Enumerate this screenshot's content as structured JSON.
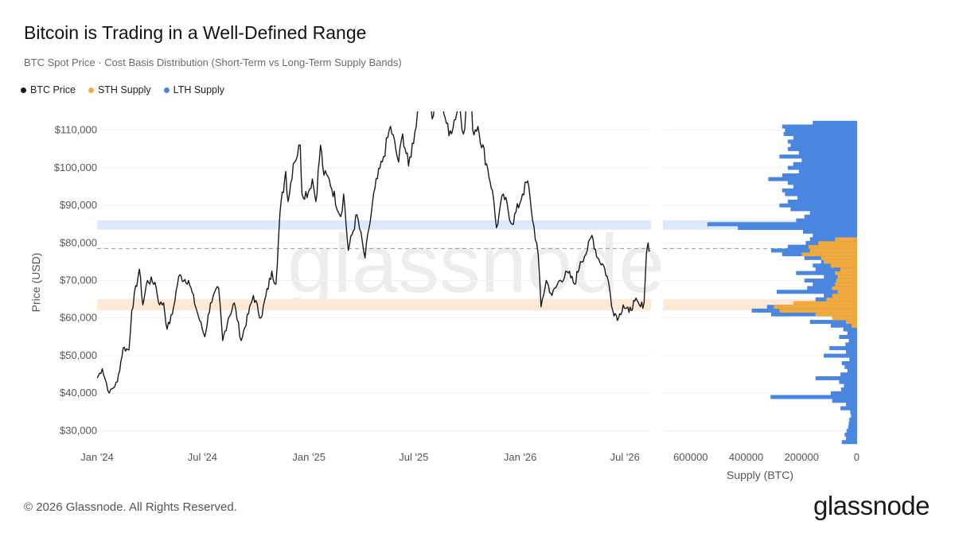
{
  "header": {
    "title": "Bitcoin is Trading in a Well-Defined Range",
    "subtitle": "BTC Spot Price · Cost Basis Distribution (Short-Term vs Long-Term Supply Bands)"
  },
  "legend": [
    {
      "label": "BTC Price",
      "color": "#1a1a1a"
    },
    {
      "label": "STH Supply",
      "color": "#f2a93b"
    },
    {
      "label": "LTH Supply",
      "color": "#4a86e0"
    }
  ],
  "footer": {
    "copyright": "© 2026 Glassnode. All Rights Reserved.",
    "brand": "glassnode",
    "watermark": "glassnode"
  },
  "chart_data": [
    {
      "type": "line",
      "ylabel": "Price (USD)",
      "ylim": [
        25000,
        115000
      ],
      "x_range": [
        "2024-01-01",
        "2026-08-15"
      ],
      "x_ticks": [
        "Jan '24",
        "Jul '24",
        "Jan '25",
        "Jul '25",
        "Jan '26",
        "Jul '26"
      ],
      "y_ticks": [
        "$30,000",
        "$40,000",
        "$50,000",
        "$60,000",
        "$70,000",
        "$80,000",
        "$90,000",
        "$100,000",
        "$110,000"
      ],
      "y_tick_values": [
        30000,
        40000,
        50000,
        60000,
        70000,
        80000,
        90000,
        100000,
        110000
      ],
      "bands": [
        {
          "name": "LTH band",
          "from": 83500,
          "to": 86000,
          "color": "#dce9fb"
        },
        {
          "name": "STH band",
          "from": 62000,
          "to": 65000,
          "color": "#fde9d6"
        }
      ],
      "reference_line": 78500,
      "series": [
        {
          "name": "BTC Price",
          "color": "#1a1a1a",
          "points": [
            [
              "2024-01-01",
              44000
            ],
            [
              "2024-01-10",
              46500
            ],
            [
              "2024-01-22",
              40000
            ],
            [
              "2024-02-05",
              43000
            ],
            [
              "2024-02-15",
              52000
            ],
            [
              "2024-02-25",
              51500
            ],
            [
              "2024-03-01",
              62000
            ],
            [
              "2024-03-14",
              73000
            ],
            [
              "2024-03-20",
              63500
            ],
            [
              "2024-03-28",
              70000
            ],
            [
              "2024-04-10",
              69500
            ],
            [
              "2024-04-18",
              63500
            ],
            [
              "2024-04-25",
              64000
            ],
            [
              "2024-05-01",
              57000
            ],
            [
              "2024-05-10",
              61000
            ],
            [
              "2024-05-21",
              71000
            ],
            [
              "2024-06-07",
              70000
            ],
            [
              "2024-06-24",
              60500
            ],
            [
              "2024-07-05",
              55000
            ],
            [
              "2024-07-15",
              64000
            ],
            [
              "2024-07-29",
              68000
            ],
            [
              "2024-08-05",
              54000
            ],
            [
              "2024-08-15",
              60000
            ],
            [
              "2024-08-25",
              64000
            ],
            [
              "2024-09-06",
              54000
            ],
            [
              "2024-09-27",
              66000
            ],
            [
              "2024-10-10",
              60000
            ],
            [
              "2024-10-29",
              72500
            ],
            [
              "2024-11-05",
              69000
            ],
            [
              "2024-11-12",
              88000
            ],
            [
              "2024-11-22",
              99000
            ],
            [
              "2024-11-26",
              91000
            ],
            [
              "2024-12-05",
              101000
            ],
            [
              "2024-12-17",
              106000
            ],
            [
              "2024-12-20",
              93000
            ],
            [
              "2024-12-31",
              93500
            ],
            [
              "2025-01-07",
              97000
            ],
            [
              "2025-01-13",
              91000
            ],
            [
              "2025-01-21",
              106000
            ],
            [
              "2025-01-27",
              98000
            ],
            [
              "2025-02-05",
              97000
            ],
            [
              "2025-02-25",
              87000
            ],
            [
              "2025-03-02",
              93000
            ],
            [
              "2025-03-10",
              78000
            ],
            [
              "2025-03-25",
              87500
            ],
            [
              "2025-04-08",
              76000
            ],
            [
              "2025-04-15",
              84000
            ],
            [
              "2025-04-25",
              94500
            ],
            [
              "2025-05-10",
              103000
            ],
            [
              "2025-05-22",
              111000
            ],
            [
              "2025-06-05",
              101500
            ],
            [
              "2025-06-12",
              109000
            ],
            [
              "2025-06-22",
              100500
            ],
            [
              "2025-07-03",
              109500
            ],
            [
              "2025-07-14",
              122000
            ],
            [
              "2025-07-28",
              119000
            ],
            [
              "2025-08-02",
              113000
            ],
            [
              "2025-08-13",
              123000
            ],
            [
              "2025-08-31",
              108500
            ],
            [
              "2025-09-18",
              117000
            ],
            [
              "2025-09-25",
              109000
            ],
            [
              "2025-10-06",
              124000
            ],
            [
              "2025-10-11",
              110000
            ],
            [
              "2025-10-20",
              111000
            ],
            [
              "2025-11-04",
              101000
            ],
            [
              "2025-11-14",
              94000
            ],
            [
              "2025-11-21",
              84000
            ],
            [
              "2025-12-03",
              93000
            ],
            [
              "2025-12-18",
              85000
            ],
            [
              "2026-01-05",
              93000
            ],
            [
              "2026-01-14",
              96500
            ],
            [
              "2026-01-20",
              89000
            ],
            [
              "2026-02-01",
              77000
            ],
            [
              "2026-02-06",
              63000
            ],
            [
              "2026-02-15",
              70000
            ],
            [
              "2026-02-25",
              66000
            ],
            [
              "2026-03-10",
              70000
            ],
            [
              "2026-03-25",
              72000
            ],
            [
              "2026-04-05",
              69000
            ],
            [
              "2026-04-15",
              75000
            ],
            [
              "2026-04-27",
              78000
            ],
            [
              "2026-05-05",
              82000
            ],
            [
              "2026-05-15",
              76000
            ],
            [
              "2026-05-25",
              74000
            ],
            [
              "2026-06-02",
              70000
            ],
            [
              "2026-06-10",
              62000
            ],
            [
              "2026-06-20",
              60000
            ],
            [
              "2026-06-28",
              63500
            ],
            [
              "2026-07-08",
              61500
            ],
            [
              "2026-07-18",
              64500
            ],
            [
              "2026-07-28",
              63000
            ],
            [
              "2026-08-03",
              64000
            ],
            [
              "2026-08-07",
              77000
            ],
            [
              "2026-08-10",
              80000
            ],
            [
              "2026-08-13",
              78000
            ]
          ]
        }
      ]
    },
    {
      "type": "bar",
      "orientation": "horizontal",
      "xlabel": "Supply (BTC)",
      "xlim": [
        700000,
        0
      ],
      "x_ticks": [
        "600000",
        "400000",
        "200000",
        "0"
      ],
      "x_tick_values": [
        600000,
        400000,
        200000,
        0
      ],
      "price_bin_size": 1000,
      "series": [
        {
          "name": "LTH Supply",
          "color": "#4a86e0",
          "price": [
            27000,
            28000,
            29000,
            30000,
            31000,
            32000,
            33000,
            34000,
            35000,
            36000,
            37000,
            38000,
            39000,
            40000,
            41000,
            42000,
            43000,
            44000,
            45000,
            46000,
            47000,
            48000,
            49000,
            50000,
            51000,
            52000,
            53000,
            54000,
            55000,
            56000,
            57000,
            58000,
            59000,
            60000,
            61000,
            62000,
            63000,
            64000,
            65000,
            66000,
            67000,
            68000,
            69000,
            70000,
            71000,
            72000,
            73000,
            74000,
            75000,
            76000,
            77000,
            78000,
            79000,
            80000,
            81000,
            82000,
            83000,
            84000,
            85000,
            86000,
            87000,
            88000,
            89000,
            90000,
            91000,
            92000,
            93000,
            94000,
            95000,
            96000,
            97000,
            98000,
            99000,
            100000,
            101000,
            102000,
            103000,
            104000,
            105000,
            106000,
            107000,
            108000,
            109000,
            110000,
            111000,
            112000
          ],
          "values": [
            55000,
            40000,
            45000,
            38000,
            32000,
            30000,
            28000,
            22000,
            25000,
            60000,
            40000,
            90000,
            312000,
            95000,
            58000,
            48000,
            65000,
            150000,
            60000,
            35000,
            45000,
            55000,
            28000,
            120000,
            40000,
            100000,
            42000,
            30000,
            65000,
            35000,
            50000,
            95000,
            170000,
            40000,
            310000,
            380000,
            325000,
            170000,
            150000,
            120000,
            290000,
            180000,
            160000,
            190000,
            120000,
            220000,
            150000,
            160000,
            130000,
            190000,
            270000,
            310000,
            250000,
            185000,
            170000,
            160000,
            195000,
            430000,
            540000,
            220000,
            190000,
            170000,
            240000,
            280000,
            250000,
            215000,
            260000,
            270000,
            230000,
            250000,
            320000,
            270000,
            210000,
            250000,
            230000,
            200000,
            280000,
            210000,
            250000,
            240000,
            250000,
            230000,
            265000,
            260000,
            270000,
            160000
          ]
        },
        {
          "name": "STH Supply",
          "color": "#f2a93b",
          "price": [
            58000,
            59000,
            60000,
            61000,
            62000,
            63000,
            64000,
            65000,
            66000,
            67000,
            68000,
            69000,
            70000,
            71000,
            72000,
            73000,
            74000,
            75000,
            76000,
            77000,
            78000,
            79000,
            80000,
            81000
          ],
          "values": [
            20000,
            40000,
            90000,
            150000,
            280000,
            300000,
            230000,
            110000,
            90000,
            70000,
            90000,
            80000,
            75000,
            70000,
            80000,
            60000,
            95000,
            120000,
            130000,
            200000,
            170000,
            175000,
            140000,
            80000
          ]
        }
      ]
    }
  ]
}
